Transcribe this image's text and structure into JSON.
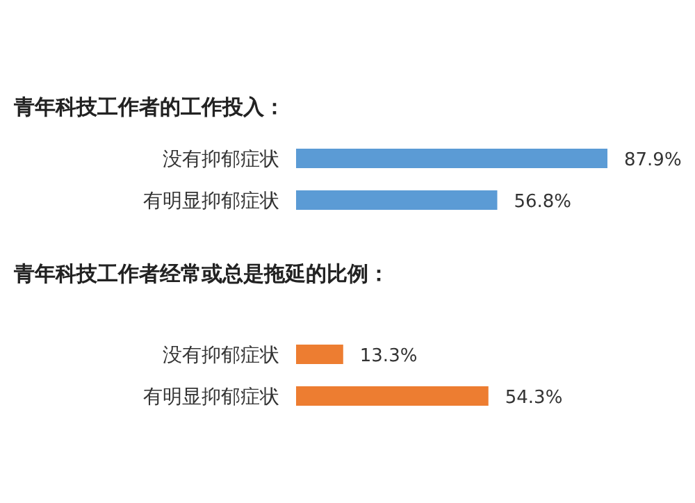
{
  "chart_data": [
    {
      "type": "bar",
      "orientation": "horizontal",
      "title": "青年科技工作者的工作投入：",
      "categories": [
        "没有抑郁症状",
        "有明显抑郁症状"
      ],
      "values": [
        87.9,
        56.8
      ],
      "value_labels": [
        "87.9%",
        "56.8%"
      ],
      "color": "#5b9bd5"
    },
    {
      "type": "bar",
      "orientation": "horizontal",
      "title": "青年科技工作者经常或总是拖延的比例：",
      "categories": [
        "没有抑郁症状",
        "有明显抑郁症状"
      ],
      "values": [
        13.3,
        54.3
      ],
      "value_labels": [
        "13.3%",
        "54.3%"
      ],
      "color": "#ed7d31"
    }
  ]
}
